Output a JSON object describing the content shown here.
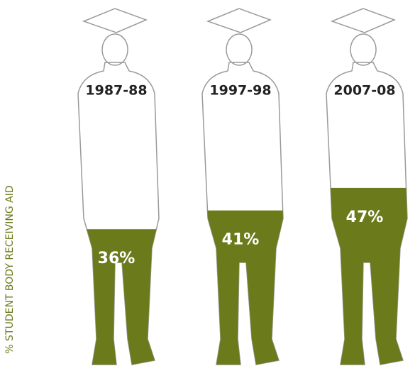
{
  "chart_data": {
    "type": "pictograph",
    "y_label": "% STUDENT BODY RECEIVING AID",
    "categories": [
      "1987-88",
      "1997-98",
      "2007-08"
    ],
    "values": [
      36,
      41,
      47
    ],
    "value_labels": [
      "36%",
      "41%",
      "47%"
    ],
    "color": "#6b7a1a",
    "ylim": [
      0,
      100
    ]
  }
}
